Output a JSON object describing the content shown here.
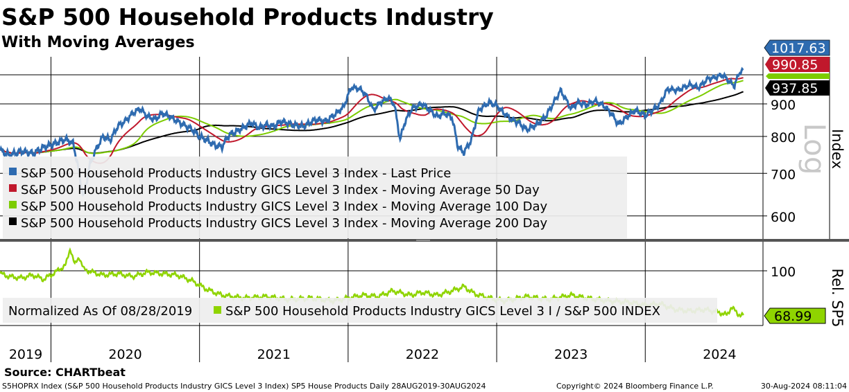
{
  "title": "S&P 500 Household Products Industry",
  "subtitle": "With Moving Averages",
  "source": "Source: CHARTbeat",
  "footer": {
    "left": "S5HOPRX Index (S&P 500 Household Products Industry GICS Level 3 Index) SP5 House Products  Daily 28AUG2019-30AUG2024",
    "center": "Copyright© 2024 Bloomberg Finance L.P.",
    "right": "30-Aug-2024 08:11:04"
  },
  "colors": {
    "last": "#2e6bb0",
    "ma50": "#c0182c",
    "ma100": "#7ccc00",
    "ma200": "#000000",
    "rel": "#8fd400"
  },
  "chart_data": [
    {
      "type": "line",
      "panel": "main",
      "yscale": "log",
      "ylabel": "Index",
      "scale_note": "Log",
      "yticks": [
        600,
        700,
        800,
        900
      ],
      "ylim": [
        560,
        1060
      ],
      "legend": [
        "S&P 500 Household Products Industry GICS Level 3 Index - Last Price",
        "S&P 500 Household Products Industry GICS Level 3 Index - Moving Average 50 Day",
        "S&P 500 Household Products Industry GICS Level 3 Index - Moving Average 100 Day",
        "S&P 500 Household Products Industry GICS Level 3 Index - Moving Average 200 Day"
      ],
      "legend_placement": "bottom-left",
      "last_values": {
        "last": "1017.63",
        "ma50": "990.85",
        "ma100": "970.40",
        "ma200": "937.85"
      },
      "series": {
        "last_price": {
          "x": [
            2019.66,
            2019.72,
            2019.8,
            2019.88,
            2019.95,
            2020.02,
            2020.1,
            2020.15,
            2020.19,
            2020.22,
            2020.26,
            2020.3,
            2020.35,
            2020.4,
            2020.45,
            2020.5,
            2020.55,
            2020.6,
            2020.65,
            2020.7,
            2020.75,
            2020.8,
            2020.87,
            2020.95,
            2021.0,
            2021.05,
            2021.1,
            2021.15,
            2021.2,
            2021.27,
            2021.35,
            2021.4,
            2021.45,
            2021.5,
            2021.55,
            2021.62,
            2021.7,
            2021.78,
            2021.85,
            2021.92,
            2021.97,
            2022.02,
            2022.08,
            2022.12,
            2022.17,
            2022.22,
            2022.27,
            2022.31,
            2022.35,
            2022.38,
            2022.43,
            2022.5,
            2022.55,
            2022.6,
            2022.65,
            2022.7,
            2022.74,
            2022.78,
            2022.83,
            2022.88,
            2022.95,
            2023.0,
            2023.05,
            2023.1,
            2023.15,
            2023.2,
            2023.27,
            2023.33,
            2023.38,
            2023.43,
            2023.5,
            2023.55,
            2023.6,
            2023.66,
            2023.72,
            2023.77,
            2023.82,
            2023.88,
            2023.93,
            2024.0,
            2024.05,
            2024.1,
            2024.15,
            2024.22,
            2024.3,
            2024.36,
            2024.42,
            2024.47,
            2024.52,
            2024.57,
            2024.6,
            2024.63,
            2024.66
          ],
          "y": [
            760,
            748,
            758,
            752,
            770,
            778,
            792,
            780,
            700,
            640,
            720,
            760,
            800,
            790,
            830,
            845,
            870,
            885,
            860,
            850,
            870,
            860,
            840,
            820,
            800,
            790,
            775,
            770,
            805,
            820,
            840,
            825,
            835,
            830,
            845,
            835,
            830,
            850,
            845,
            870,
            890,
            955,
            950,
            930,
            880,
            905,
            920,
            900,
            790,
            840,
            885,
            900,
            880,
            860,
            870,
            855,
            770,
            755,
            790,
            880,
            905,
            895,
            870,
            850,
            840,
            820,
            835,
            860,
            900,
            945,
            885,
            905,
            895,
            910,
            895,
            870,
            835,
            860,
            880,
            862,
            880,
            900,
            950,
            945,
            965,
            955,
            985,
            990,
            1000,
            975,
            960,
            1005,
            1017.63
          ]
        }
      },
      "moving_average_windows": [
        50,
        100,
        200
      ]
    },
    {
      "type": "line",
      "panel": "relative",
      "ylabel": "Rel. SP5",
      "yticks": [
        100
      ],
      "ylim": [
        63,
        118
      ],
      "legend": [
        "Normalized As Of 08/28/2019",
        "S&P 500 Household Products Industry GICS Level 3 I / S&P 500 INDEX"
      ],
      "last_value": "68.99",
      "x": [
        2019.66,
        2019.72,
        2019.8,
        2019.88,
        2019.95,
        2020.03,
        2020.1,
        2020.13,
        2020.16,
        2020.19,
        2020.22,
        2020.28,
        2020.35,
        2020.45,
        2020.55,
        2020.65,
        2020.75,
        2020.85,
        2020.95,
        2021.05,
        2021.15,
        2021.3,
        2021.45,
        2021.6,
        2021.75,
        2021.9,
        2022.0,
        2022.1,
        2022.2,
        2022.3,
        2022.42,
        2022.5,
        2022.6,
        2022.7,
        2022.78,
        2022.85,
        2022.95,
        2023.05,
        2023.2,
        2023.35,
        2023.5,
        2023.6,
        2023.75,
        2023.9,
        2024.0,
        2024.1,
        2024.2,
        2024.3,
        2024.4,
        2024.5,
        2024.55,
        2024.58,
        2024.62,
        2024.66
      ],
      "y": [
        98,
        96,
        95,
        97,
        94,
        99,
        104,
        116,
        104,
        110,
        101,
        99,
        97,
        98,
        96,
        99,
        98,
        97,
        93,
        87,
        83,
        81,
        82,
        80,
        81,
        79,
        81,
        83,
        82,
        86,
        83,
        85,
        83,
        86,
        89,
        84,
        81,
        79,
        82,
        80,
        83,
        81,
        79,
        78,
        76,
        77,
        73,
        72,
        73,
        71,
        69,
        75,
        70,
        69
      ]
    }
  ],
  "x_axis": {
    "labels": [
      "2019",
      "2020",
      "2021",
      "2022",
      "2023",
      "2024"
    ]
  }
}
